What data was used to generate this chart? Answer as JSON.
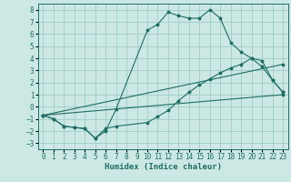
{
  "xlabel": "Humidex (Indice chaleur)",
  "xlim": [
    -0.5,
    23.5
  ],
  "ylim": [
    -3.5,
    8.5
  ],
  "xticks": [
    0,
    1,
    2,
    3,
    4,
    5,
    6,
    7,
    8,
    9,
    10,
    11,
    12,
    13,
    14,
    15,
    16,
    17,
    18,
    19,
    20,
    21,
    22,
    23
  ],
  "yticks": [
    -3,
    -2,
    -1,
    0,
    1,
    2,
    3,
    4,
    5,
    6,
    7,
    8
  ],
  "bg_color": "#cce8e4",
  "grid_color": "#9eccc6",
  "line_color": "#1e6e64",
  "lines": [
    {
      "x": [
        0,
        1,
        2,
        3,
        4,
        5,
        6,
        7,
        10,
        11,
        12,
        13,
        14,
        15,
        16,
        17,
        18,
        19,
        20,
        21,
        22,
        23
      ],
      "y": [
        -0.7,
        -1.0,
        -1.6,
        -1.7,
        -1.8,
        -2.6,
        -2.0,
        -0.2,
        6.3,
        6.8,
        7.8,
        7.5,
        7.3,
        7.3,
        8.0,
        7.3,
        5.3,
        4.5,
        4.0,
        3.3,
        2.2,
        1.2
      ]
    },
    {
      "x": [
        0,
        1,
        2,
        3,
        4,
        5,
        6,
        7,
        10,
        11,
        12,
        13,
        14,
        15,
        16,
        17,
        18,
        19,
        20,
        21,
        22,
        23
      ],
      "y": [
        -0.7,
        -1.0,
        -1.6,
        -1.7,
        -1.8,
        -2.6,
        -1.8,
        -1.6,
        -1.3,
        -0.8,
        -0.3,
        0.5,
        1.2,
        1.8,
        2.3,
        2.8,
        3.2,
        3.5,
        4.0,
        3.8,
        2.2,
        1.2
      ]
    },
    {
      "x": [
        0,
        23
      ],
      "y": [
        -0.7,
        3.5
      ]
    },
    {
      "x": [
        0,
        23
      ],
      "y": [
        -0.7,
        1.0
      ]
    }
  ]
}
